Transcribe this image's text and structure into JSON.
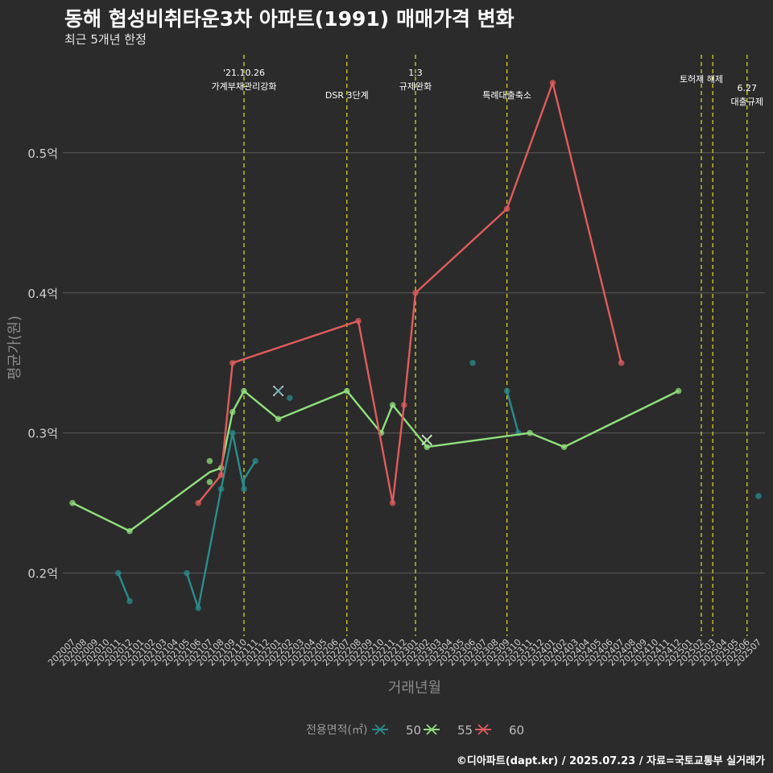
{
  "chart_data": {
    "type": "line",
    "title": "동해 협성비취타운3차 아파트(1991) 매매가격 변화",
    "subtitle": "최근 5개년 한정",
    "caption": "©디아파트(dapt.kr) / 2025.07.23 / 자료=국토교통부 실거래가",
    "xlabel": "거래년월",
    "ylabel": "평균가(원)",
    "ylim": [
      0.155,
      0.57
    ],
    "yticks": [
      {
        "v": 0.2,
        "label": "0.2억"
      },
      {
        "v": 0.3,
        "label": "0.3억"
      },
      {
        "v": 0.4,
        "label": "0.4억"
      },
      {
        "v": 0.5,
        "label": "0.5억"
      }
    ],
    "x": [
      "202007",
      "202008",
      "202009",
      "202010",
      "202011",
      "202012",
      "202101",
      "202102",
      "202103",
      "202104",
      "202105",
      "202106",
      "202107",
      "202108",
      "202109",
      "202110",
      "202111",
      "202112",
      "202201",
      "202202",
      "202203",
      "202204",
      "202205",
      "202206",
      "202207",
      "202208",
      "202209",
      "202210",
      "202211",
      "202212",
      "202301",
      "202302",
      "202303",
      "202304",
      "202305",
      "202306",
      "202307",
      "202308",
      "202309",
      "202310",
      "202311",
      "202312",
      "202401",
      "202402",
      "202403",
      "202404",
      "202405",
      "202406",
      "202407",
      "202408",
      "202409",
      "202410",
      "202411",
      "202412",
      "202501",
      "202502",
      "202503",
      "202504",
      "202505",
      "202506",
      "202507"
    ],
    "legend": {
      "title": "전용면적(㎡)",
      "position": "bottom"
    },
    "series": [
      {
        "name": "50",
        "color": "#2a8c8c",
        "segments": [
          [
            [
              "202011",
              0.2
            ],
            [
              "202012",
              0.18
            ]
          ],
          [
            [
              "202105",
              0.2
            ],
            [
              "202106",
              0.175
            ],
            [
              "202108",
              0.26
            ],
            [
              "202109",
              0.3
            ],
            [
              "202110",
              0.26
            ],
            [
              "202110",
              0.267
            ],
            [
              "202111",
              0.28
            ]
          ],
          [
            [
              "202309",
              0.33
            ],
            [
              "202310",
              0.3
            ]
          ]
        ],
        "points": [
          [
            "202011",
            0.2
          ],
          [
            "202012",
            0.18
          ],
          [
            "202105",
            0.2
          ],
          [
            "202106",
            0.175
          ],
          [
            "202108",
            0.26
          ],
          [
            "202109",
            0.3
          ],
          [
            "202110",
            0.26
          ],
          [
            "202111",
            0.28
          ],
          [
            "202202",
            0.325
          ],
          [
            "202306",
            0.35
          ],
          [
            "202309",
            0.33
          ],
          [
            "202310",
            0.3
          ],
          [
            "202507",
            0.255
          ]
        ],
        "crosses": [
          [
            "202201",
            0.33
          ]
        ]
      },
      {
        "name": "55",
        "color": "#90e07c",
        "segments": [
          [
            [
              "202007",
              0.25
            ],
            [
              "202012",
              0.23
            ],
            [
              "202107",
              0.272
            ],
            [
              "202108",
              0.275
            ],
            [
              "202109",
              0.315
            ],
            [
              "202110",
              0.33
            ],
            [
              "202201",
              0.31
            ],
            [
              "202207",
              0.33
            ],
            [
              "202210",
              0.3
            ],
            [
              "202211",
              0.32
            ],
            [
              "202302",
              0.29
            ],
            [
              "202311",
              0.3
            ],
            [
              "202402",
              0.29
            ],
            [
              "202412",
              0.33
            ]
          ]
        ],
        "points": [
          [
            "202007",
            0.25
          ],
          [
            "202012",
            0.23
          ],
          [
            "202107",
            0.28
          ],
          [
            "202107",
            0.265
          ],
          [
            "202108",
            0.275
          ],
          [
            "202109",
            0.315
          ],
          [
            "202110",
            0.33
          ],
          [
            "202201",
            0.31
          ],
          [
            "202207",
            0.33
          ],
          [
            "202210",
            0.3
          ],
          [
            "202211",
            0.32
          ],
          [
            "202302",
            0.29
          ],
          [
            "202311",
            0.3
          ],
          [
            "202402",
            0.29
          ],
          [
            "202412",
            0.33
          ]
        ],
        "crosses": [
          [
            "202302",
            0.295
          ]
        ]
      },
      {
        "name": "60",
        "color": "#e05c5c",
        "segments": [
          [
            [
              "202106",
              0.25
            ],
            [
              "202108",
              0.27
            ],
            [
              "202109",
              0.35
            ],
            [
              "202208",
              0.38
            ],
            [
              "202211",
              0.25
            ],
            [
              "202212",
              0.32
            ],
            [
              "202301",
              0.4
            ],
            [
              "202309",
              0.46
            ],
            [
              "202401",
              0.55
            ],
            [
              "202407",
              0.35
            ]
          ]
        ],
        "points": [
          [
            "202106",
            0.25
          ],
          [
            "202108",
            0.27
          ],
          [
            "202109",
            0.35
          ],
          [
            "202208",
            0.38
          ],
          [
            "202211",
            0.25
          ],
          [
            "202212",
            0.32
          ],
          [
            "202301",
            0.4
          ],
          [
            "202309",
            0.46
          ],
          [
            "202401",
            0.55
          ],
          [
            "202407",
            0.35
          ]
        ],
        "crosses": []
      }
    ],
    "annotations": [
      {
        "x": "202110",
        "lines": [
          "'21.10.26",
          "가계부채관리강화"
        ],
        "row": 0
      },
      {
        "x": "202207",
        "lines": [
          "DSR 3단계"
        ],
        "row": 2
      },
      {
        "x": "202301",
        "lines": [
          "1.3",
          "규제완화"
        ],
        "row": 0
      },
      {
        "x": "202309",
        "lines": [
          "특례대출축소"
        ],
        "row": 2
      },
      {
        "x": "202502",
        "lines": [],
        "row": 1
      },
      {
        "x": "202503",
        "lines": [
          "토허제 해제"
        ],
        "row": 1,
        "labelX": "202502"
      },
      {
        "x": "202506",
        "lines": [
          "6.27",
          "대출규제"
        ],
        "row": 1
      }
    ]
  }
}
